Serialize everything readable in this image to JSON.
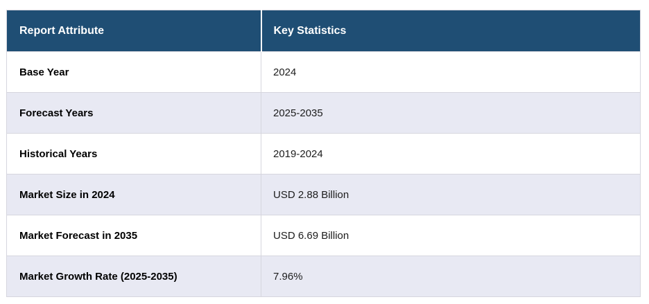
{
  "table": {
    "columns": [
      {
        "label": "Report Attribute"
      },
      {
        "label": "Key Statistics"
      }
    ],
    "rows": [
      {
        "attribute": "Base Year",
        "value": "2024"
      },
      {
        "attribute": "Forecast Years",
        "value": "2025-2035"
      },
      {
        "attribute": "Historical Years",
        "value": "2019-2024"
      },
      {
        "attribute": "Market Size in 2024",
        "value": "USD 2.88 Billion"
      },
      {
        "attribute": "Market Forecast in 2035",
        "value": "USD 6.69 Billion"
      },
      {
        "attribute": "Market Growth Rate (2025-2035)",
        "value": "7.96%"
      }
    ]
  },
  "colors": {
    "header_bg": "#1F4E74",
    "header_text": "#FFFFFF",
    "row_bg": "#FFFFFF",
    "row_alt_bg": "#E8E9F3",
    "border": "#D6D6DE",
    "body_text": "#000000",
    "value_text": "#1C1C1C"
  }
}
